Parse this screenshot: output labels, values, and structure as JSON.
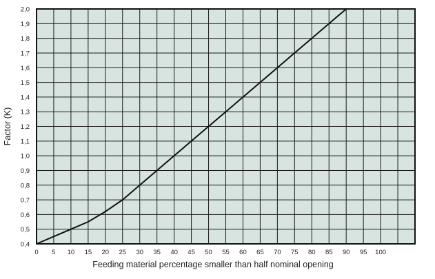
{
  "chart_data": {
    "type": "line",
    "title": "",
    "xlabel": "Feeding material percentage smaller than half nominal opening",
    "ylabel": "Factor (K)",
    "xlim": [
      0,
      110
    ],
    "ylim": [
      0.4,
      2.0
    ],
    "x_ticks": [
      "0",
      "5",
      "10",
      "15",
      "20",
      "25",
      "30",
      "35",
      "40",
      "45",
      "50",
      "55",
      "60",
      "65",
      "70",
      "75",
      "80",
      "85",
      "90",
      "95",
      "100"
    ],
    "y_ticks": [
      "0,4",
      "0,5",
      "0,6",
      "0,7",
      "0,8",
      "0,9",
      "1,0",
      "1,1",
      "1,2",
      "1,3",
      "1,4",
      "1,5",
      "1,6",
      "1,7",
      "1,8",
      "1,9",
      "2,0"
    ],
    "grid": true,
    "colors": {
      "plot_background": "#d7e4e0",
      "grid": "#1a1a1a",
      "line": "#111111"
    },
    "series": [
      {
        "x": [
          0,
          5,
          10,
          15,
          20,
          25,
          30,
          35,
          40,
          45,
          50,
          55,
          60,
          65,
          70,
          75,
          80,
          85,
          90
        ],
        "values": [
          0.4,
          0.45,
          0.5,
          0.55,
          0.62,
          0.7,
          0.8,
          0.9,
          1.0,
          1.1,
          1.2,
          1.3,
          1.4,
          1.5,
          1.6,
          1.7,
          1.8,
          1.9,
          2.0
        ]
      }
    ]
  }
}
